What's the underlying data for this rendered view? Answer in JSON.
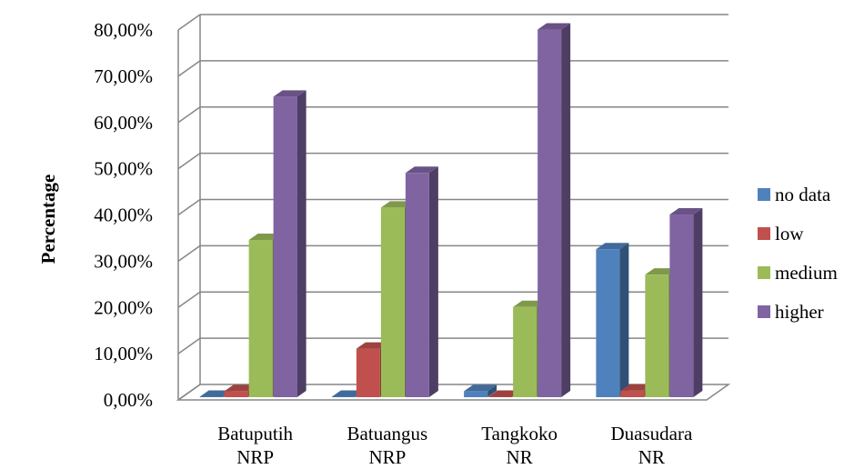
{
  "chart_data": {
    "type": "bar",
    "ylabel": "Percentage",
    "xlabel": "",
    "categories": [
      [
        "Batuputih",
        "NRP"
      ],
      [
        "Batuangus",
        "NRP"
      ],
      [
        "Tangkoko",
        "NR"
      ],
      [
        "Duasudara",
        "NR"
      ]
    ],
    "ylim": [
      0,
      0.8
    ],
    "yticks": [
      0,
      0.1,
      0.2,
      0.3,
      0.4,
      0.5,
      0.6,
      0.7,
      0.8
    ],
    "ytick_labels": [
      "0,00%",
      "10,00%",
      "20,00%",
      "30,00%",
      "40,00%",
      "50,00%",
      "60,00%",
      "70,00%",
      "80,00%"
    ],
    "series": [
      {
        "name": "no data",
        "color": "#4F81BD",
        "values": [
          0.0,
          0.0,
          0.013,
          0.32
        ]
      },
      {
        "name": "low",
        "color": "#C0504D",
        "values": [
          0.013,
          0.105,
          0.0,
          0.014
        ]
      },
      {
        "name": "medium",
        "color": "#9BBB59",
        "values": [
          0.34,
          0.41,
          0.195,
          0.265
        ]
      },
      {
        "name": "higher",
        "color": "#8064A2",
        "values": [
          0.65,
          0.485,
          0.795,
          0.395
        ]
      }
    ],
    "grid": true,
    "legend_position": "right",
    "style": "3d-clustered-column"
  }
}
